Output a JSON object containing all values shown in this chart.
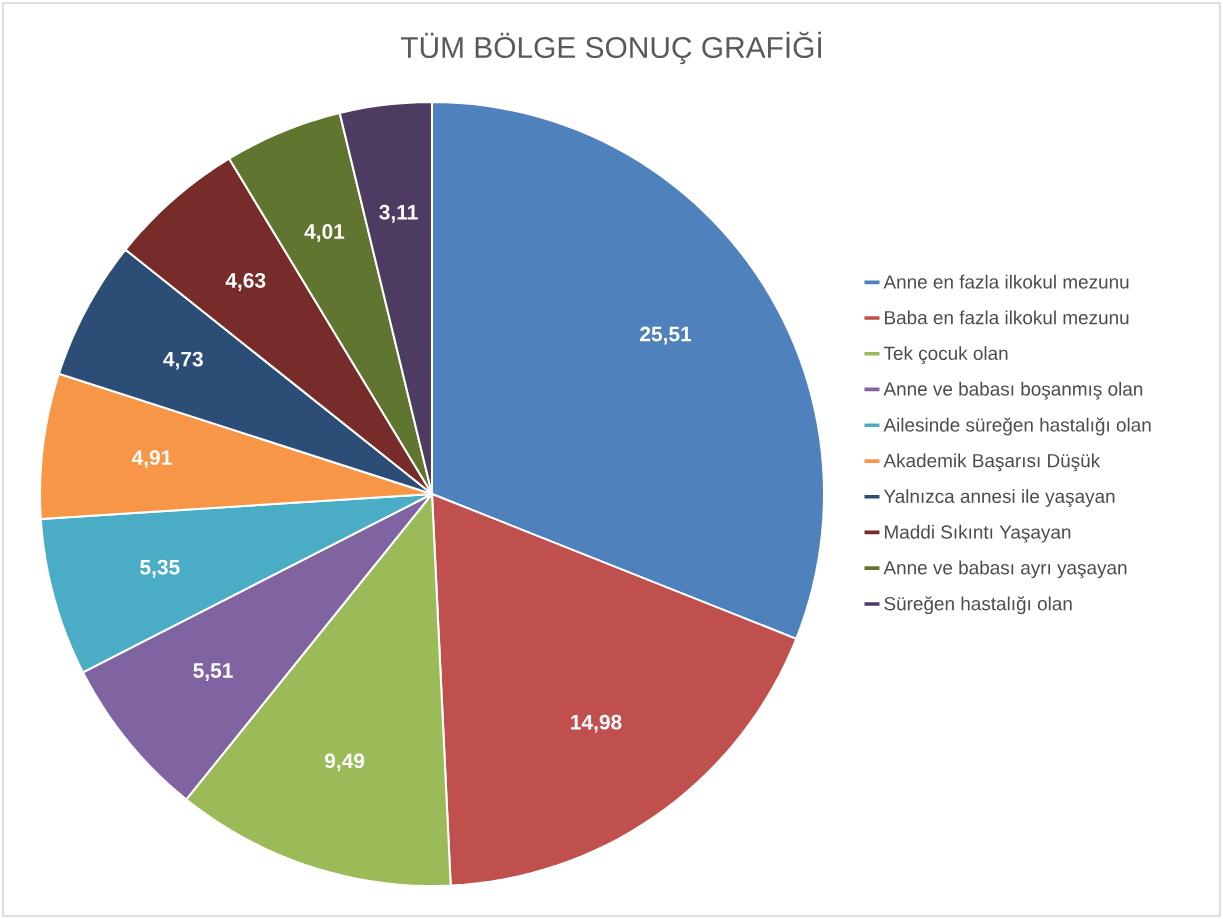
{
  "chart_data": {
    "type": "pie",
    "title": "TÜM BÖLGE SONUÇ GRAFİĞİ",
    "categories": [
      "Anne en fazla ilkokul mezunu",
      "Baba en fazla ilkokul mezunu",
      "Tek çocuk olan",
      "Anne ve babası boşanmış olan",
      "Ailesinde süreğen hastalığı olan",
      "Akademik Başarısı Düşük",
      "Yalnızca annesi ile yaşayan",
      "Maddi Sıkıntı Yaşayan",
      "Anne ve babası ayrı yaşayan",
      "Süreğen hastalığı olan"
    ],
    "values": [
      25.51,
      14.98,
      9.49,
      5.51,
      5.35,
      4.91,
      4.73,
      4.63,
      4.01,
      3.11
    ],
    "value_labels": [
      "25,51",
      "14,98",
      "9,49",
      "5,51",
      "5,35",
      "4,91",
      "4,73",
      "4,63",
      "4,01",
      "3,11"
    ],
    "colors": [
      "#4f81bd",
      "#c0504d",
      "#9bbb59",
      "#8064a2",
      "#4bacc6",
      "#f79646",
      "#2c4d75",
      "#772c2a",
      "#5f7530",
      "#4d3b62"
    ],
    "legend": "right"
  }
}
